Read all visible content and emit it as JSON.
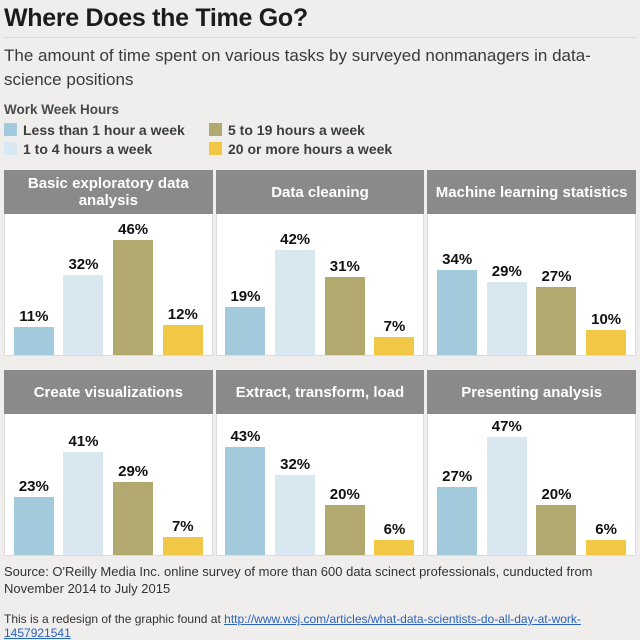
{
  "title": "Where Does the Time Go?",
  "subtitle": "The amount of time spent on various tasks by surveyed nonmanagers in data-science positions",
  "legend": {
    "heading": "Work Week Hours",
    "items": [
      {
        "label": "Less than 1 hour a week",
        "color": "#a2c9dc"
      },
      {
        "label": "1 to 4 hours a week",
        "color": "#d9e7f0"
      },
      {
        "label": "5 to 19 hours a week",
        "color": "#b1a96f"
      },
      {
        "label": "20 or more hours a week",
        "color": "#f0c845"
      }
    ]
  },
  "chart_data": {
    "type": "bar",
    "layout": "small-multiples 2 rows x 3 columns",
    "categories": [
      "Less than 1 hour a week",
      "1 to 4 hours a week",
      "5 to 19 hours a week",
      "20 or more hours a week"
    ],
    "series_colors": [
      "#a2c9dc",
      "#d9e7f0",
      "#b1a96f",
      "#f0c845"
    ],
    "unit": "%",
    "ylim": [
      0,
      50
    ],
    "grid": false,
    "data_labels": true,
    "panel_header_color": "#8a8a8a",
    "panels": [
      {
        "title": "Basic exploratory data analysis",
        "values": [
          11,
          32,
          46,
          12
        ]
      },
      {
        "title": "Data cleaning",
        "values": [
          19,
          42,
          31,
          7
        ]
      },
      {
        "title": "Machine learning statistics",
        "values": [
          34,
          29,
          27,
          10
        ]
      },
      {
        "title": "Create visualizations",
        "values": [
          23,
          41,
          29,
          7
        ]
      },
      {
        "title": "Extract, transform, load",
        "values": [
          43,
          32,
          20,
          6
        ]
      },
      {
        "title": "Presenting analysis",
        "values": [
          27,
          47,
          20,
          6
        ]
      }
    ]
  },
  "footer": {
    "source": "Source: O'Reilly Media Inc. online survey of more than 600 data scinect professionals, cunducted from November 2014 to July 2015",
    "redesign_prefix": "This is a redesign of the graphic found at ",
    "link": "http://www.wsj.com/articles/what-data-scientists-do-all-day-at-work-1457921541"
  },
  "colors": {
    "background": "#efeeec",
    "panel_header": "#8a8a8a",
    "link": "#2a63bc"
  }
}
